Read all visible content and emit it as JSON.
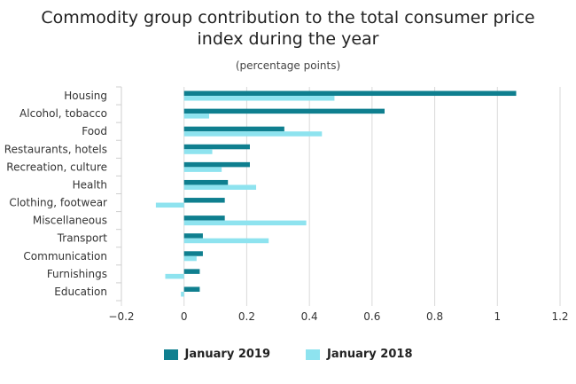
{
  "chart_data": {
    "type": "bar",
    "orientation": "horizontal",
    "title_lines": [
      "Commodity group contribution to the total consumer price",
      "index during the year"
    ],
    "subtitle": "(percentage points)",
    "categories": [
      "Housing",
      "Alcohol, tobacco",
      "Food",
      "Restaurants, hotels",
      "Recreation, culture",
      "Health",
      "Clothing, footwear",
      "Miscellaneous",
      "Transport",
      "Communication",
      "Furnishings",
      "Education"
    ],
    "series": [
      {
        "name": "January 2019",
        "color": "#0f7f8f",
        "values": [
          1.06,
          0.64,
          0.32,
          0.21,
          0.21,
          0.14,
          0.13,
          0.13,
          0.06,
          0.06,
          0.05,
          0.05
        ]
      },
      {
        "name": "January 2018",
        "color": "#8ee3ef",
        "values": [
          0.48,
          0.08,
          0.44,
          0.09,
          0.12,
          0.23,
          -0.09,
          0.39,
          0.27,
          0.04,
          -0.06,
          -0.01
        ]
      }
    ],
    "xlim": [
      -0.2,
      1.2
    ],
    "xticks": [
      "−0.2",
      "0",
      "0.2",
      "0.4",
      "0.6",
      "0.8",
      "1",
      "1.2"
    ],
    "xtick_values": [
      -0.2,
      0,
      0.2,
      0.4,
      0.6,
      0.8,
      1.0,
      1.2
    ],
    "grid": true,
    "legend_position": "bottom"
  }
}
